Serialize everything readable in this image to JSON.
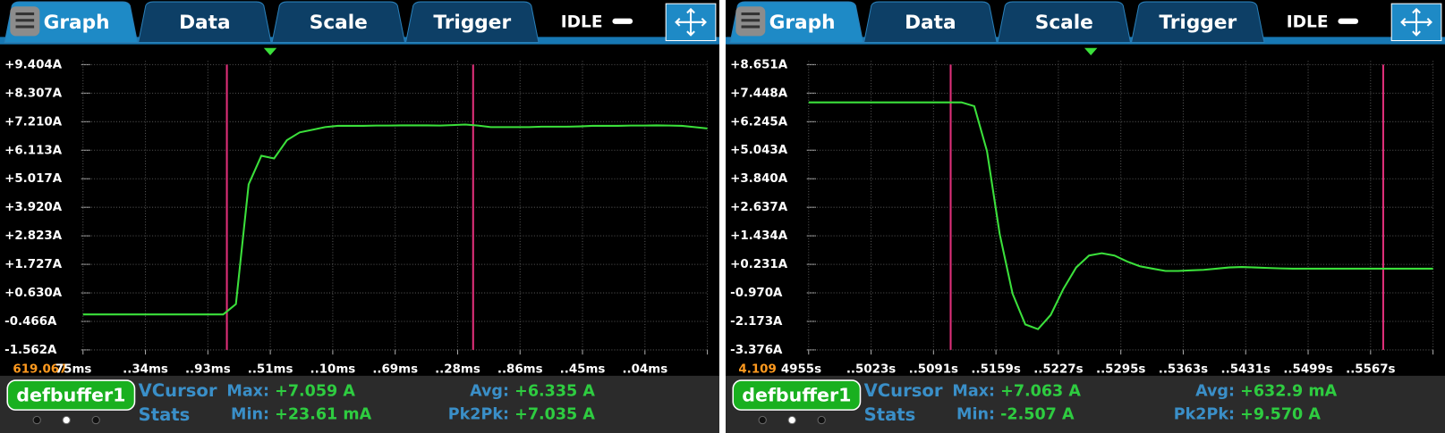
{
  "panels": [
    {
      "tabs": [
        "Graph",
        "Data",
        "Scale",
        "Trigger"
      ],
      "status": "IDLE",
      "buffer": "defbuffer1",
      "stats_title": [
        "VCursor",
        "Stats"
      ],
      "stats": {
        "max_label": "Max:",
        "max": "+7.059 A",
        "min_label": "Min:",
        "min": "+23.61 mA",
        "avg_label": "Avg:",
        "avg": "+6.335 A",
        "pk2pk_label": "Pk2Pk:",
        "pk2pk": "+7.035 A"
      }
    },
    {
      "tabs": [
        "Graph",
        "Data",
        "Scale",
        "Trigger"
      ],
      "status": "IDLE",
      "buffer": "defbuffer1",
      "stats_title": [
        "VCursor",
        "Stats"
      ],
      "stats": {
        "max_label": "Max:",
        "max": "+7.063 A",
        "min_label": "Min:",
        "min": "-2.507 A",
        "avg_label": "Avg:",
        "avg": "+632.9 mA",
        "pk2pk_label": "Pk2Pk:",
        "pk2pk": "+9.570 A"
      }
    }
  ],
  "chart_data": [
    {
      "type": "line",
      "color": "#3be03b",
      "grid": true,
      "ylim": [
        -1.562,
        9.404
      ],
      "yticks": [
        {
          "value": -1.562,
          "label": "-1.562A"
        },
        {
          "value": -0.466,
          "label": "-0.466A"
        },
        {
          "value": 0.63,
          "label": "+0.630A"
        },
        {
          "value": 1.727,
          "label": "+1.727A"
        },
        {
          "value": 2.823,
          "label": "+2.823A"
        },
        {
          "value": 3.92,
          "label": "+3.920A"
        },
        {
          "value": 5.017,
          "label": "+5.017A"
        },
        {
          "value": 6.113,
          "label": "+6.113A"
        },
        {
          "value": 7.21,
          "label": "+7.210A"
        },
        {
          "value": 8.307,
          "label": "+8.307A"
        },
        {
          "value": 9.404,
          "label": "+9.404A"
        }
      ],
      "x_origin": "619.067",
      "xtick_labels": [
        "75ms",
        "..34ms",
        "..93ms",
        "..51ms",
        "..10ms",
        "..69ms",
        "..28ms",
        "..86ms",
        "..45ms",
        "..04ms"
      ],
      "values": [
        -0.2,
        -0.2,
        -0.2,
        -0.2,
        -0.2,
        -0.2,
        -0.2,
        -0.2,
        -0.2,
        -0.2,
        -0.2,
        -0.2,
        0.2,
        4.8,
        5.9,
        5.8,
        6.5,
        6.8,
        6.9,
        7.0,
        7.05,
        7.05,
        7.05,
        7.06,
        7.06,
        7.07,
        7.07,
        7.07,
        7.06,
        7.08,
        7.1,
        7.06,
        7.0,
        7.0,
        7.0,
        7.0,
        7.02,
        7.02,
        7.02,
        7.03,
        7.05,
        7.05,
        7.05,
        7.06,
        7.06,
        7.07,
        7.06,
        7.05,
        7.0,
        6.95
      ]
    },
    {
      "type": "line",
      "color": "#3be03b",
      "grid": true,
      "ylim": [
        -3.376,
        8.651
      ],
      "yticks": [
        {
          "value": -3.376,
          "label": "-3.376A"
        },
        {
          "value": -2.173,
          "label": "-2.173A"
        },
        {
          "value": -0.97,
          "label": "-0.970A"
        },
        {
          "value": 0.231,
          "label": "+0.231A"
        },
        {
          "value": 1.434,
          "label": "+1.434A"
        },
        {
          "value": 2.637,
          "label": "+2.637A"
        },
        {
          "value": 3.84,
          "label": "+3.840A"
        },
        {
          "value": 5.043,
          "label": "+5.043A"
        },
        {
          "value": 6.245,
          "label": "+6.245A"
        },
        {
          "value": 7.448,
          "label": "+7.448A"
        },
        {
          "value": 8.651,
          "label": "+8.651A"
        }
      ],
      "x_origin": "4.109",
      "xtick_labels": [
        "4955s",
        "..5023s",
        "..5091s",
        "..5159s",
        "..5227s",
        "..5295s",
        "..5363s",
        "..5431s",
        "..5499s",
        "..5567s"
      ],
      "values": [
        7.06,
        7.06,
        7.06,
        7.06,
        7.06,
        7.06,
        7.06,
        7.06,
        7.06,
        7.06,
        7.06,
        7.06,
        7.06,
        6.9,
        5.0,
        1.5,
        -1.0,
        -2.3,
        -2.5,
        -1.9,
        -0.8,
        0.1,
        0.6,
        0.7,
        0.6,
        0.35,
        0.15,
        0.05,
        -0.05,
        -0.05,
        -0.02,
        0.0,
        0.05,
        0.1,
        0.12,
        0.1,
        0.08,
        0.06,
        0.05,
        0.05,
        0.05,
        0.05,
        0.05,
        0.05,
        0.05,
        0.05,
        0.05,
        0.05,
        0.05,
        0.05
      ]
    }
  ]
}
